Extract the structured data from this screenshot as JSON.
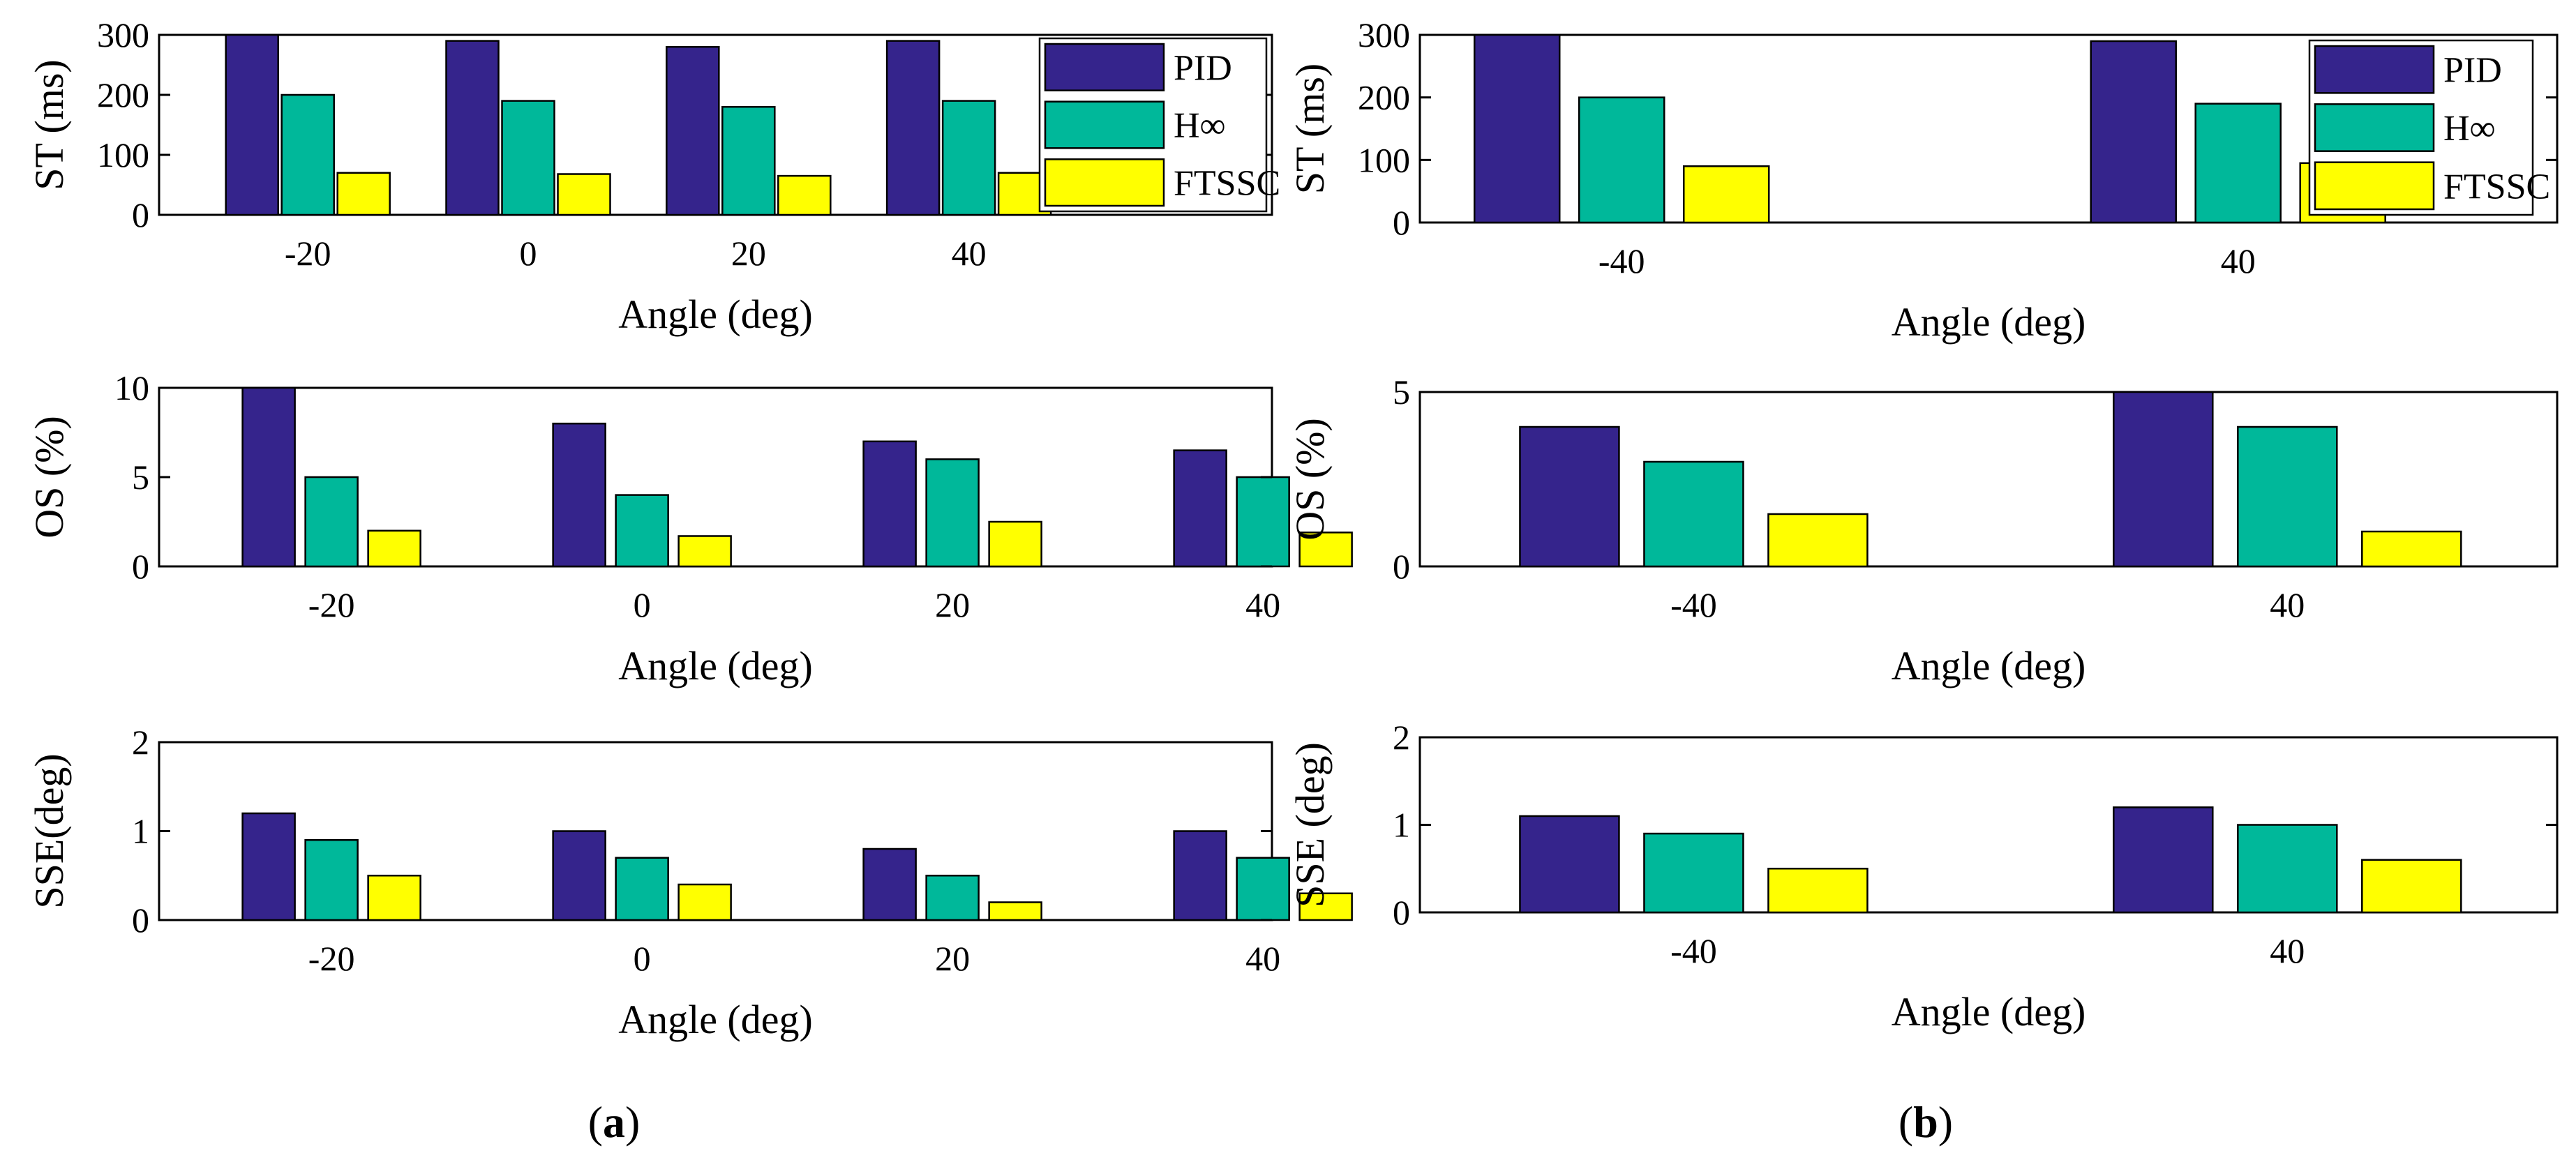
{
  "colors": {
    "PID": "#35248c",
    "Hinf": "#00b89a",
    "FTSSC": "#ffff00"
  },
  "panel_labels": {
    "a": {
      "open": "(",
      "letter": "a",
      "close": ")"
    },
    "b": {
      "open": "(",
      "letter": "b",
      "close": ")"
    }
  },
  "chart_data": [
    {
      "id": "a-st",
      "type": "bar",
      "categories": [
        "-20",
        "0",
        "20",
        "40"
      ],
      "series": [
        {
          "name": "PID",
          "values": [
            300,
            290,
            280,
            290
          ]
        },
        {
          "name": "H∞",
          "values": [
            200,
            190,
            180,
            190
          ]
        },
        {
          "name": "FTSSC",
          "values": [
            70,
            68,
            65,
            70
          ]
        }
      ],
      "xlabel": "Angle (deg)",
      "ylabel": "ST (ms)",
      "ylim": [
        0,
        300
      ],
      "yticks": [
        0,
        100,
        200,
        300
      ],
      "legend": "top-right",
      "grid": false
    },
    {
      "id": "a-os",
      "type": "bar",
      "categories": [
        "-20",
        "0",
        "20",
        "40"
      ],
      "series": [
        {
          "name": "PID",
          "values": [
            10,
            8,
            7,
            6.5
          ]
        },
        {
          "name": "H∞",
          "values": [
            5,
            4,
            6,
            5
          ]
        },
        {
          "name": "FTSSC",
          "values": [
            2,
            1.7,
            2.5,
            1.9
          ]
        }
      ],
      "xlabel": "Angle (deg)",
      "ylabel": "OS (%)",
      "ylim": [
        0,
        10
      ],
      "yticks": [
        0,
        5,
        10
      ],
      "grid": false
    },
    {
      "id": "a-sse",
      "type": "bar",
      "categories": [
        "-20",
        "0",
        "20",
        "40"
      ],
      "series": [
        {
          "name": "PID",
          "values": [
            1.2,
            1.0,
            0.8,
            1.0
          ]
        },
        {
          "name": "H∞",
          "values": [
            0.9,
            0.7,
            0.5,
            0.7
          ]
        },
        {
          "name": "FTSSC",
          "values": [
            0.5,
            0.4,
            0.2,
            0.3
          ]
        }
      ],
      "xlabel": "Angle (deg)",
      "ylabel": "SSE(deg)",
      "ylim": [
        0,
        2
      ],
      "yticks": [
        0,
        1,
        2
      ],
      "grid": false
    },
    {
      "id": "b-st",
      "type": "bar",
      "categories": [
        "-40",
        "40"
      ],
      "series": [
        {
          "name": "PID",
          "values": [
            300,
            290
          ]
        },
        {
          "name": "H∞",
          "values": [
            200,
            190
          ]
        },
        {
          "name": "FTSSC",
          "values": [
            90,
            95
          ]
        }
      ],
      "xlabel": "Angle (deg)",
      "ylabel": "ST (ms)",
      "ylim": [
        0,
        300
      ],
      "yticks": [
        0,
        100,
        200,
        300
      ],
      "legend": "top-right",
      "grid": false
    },
    {
      "id": "b-os",
      "type": "bar",
      "categories": [
        "-40",
        "40"
      ],
      "series": [
        {
          "name": "PID",
          "values": [
            4,
            5
          ]
        },
        {
          "name": "H∞",
          "values": [
            3,
            4
          ]
        },
        {
          "name": "FTSSC",
          "values": [
            1.5,
            1.0
          ]
        }
      ],
      "xlabel": "Angle (deg)",
      "ylabel": "OS (%)",
      "ylim": [
        0,
        5
      ],
      "yticks": [
        0,
        5
      ],
      "grid": false
    },
    {
      "id": "b-sse",
      "type": "bar",
      "categories": [
        "-40",
        "40"
      ],
      "series": [
        {
          "name": "PID",
          "values": [
            1.1,
            1.2
          ]
        },
        {
          "name": "H∞",
          "values": [
            0.9,
            1.0
          ]
        },
        {
          "name": "FTSSC",
          "values": [
            0.5,
            0.6
          ]
        }
      ],
      "xlabel": "Angle (deg)",
      "ylabel": "SSE (deg)",
      "ylim": [
        0,
        2
      ],
      "yticks": [
        0,
        1,
        2
      ],
      "grid": false
    }
  ]
}
